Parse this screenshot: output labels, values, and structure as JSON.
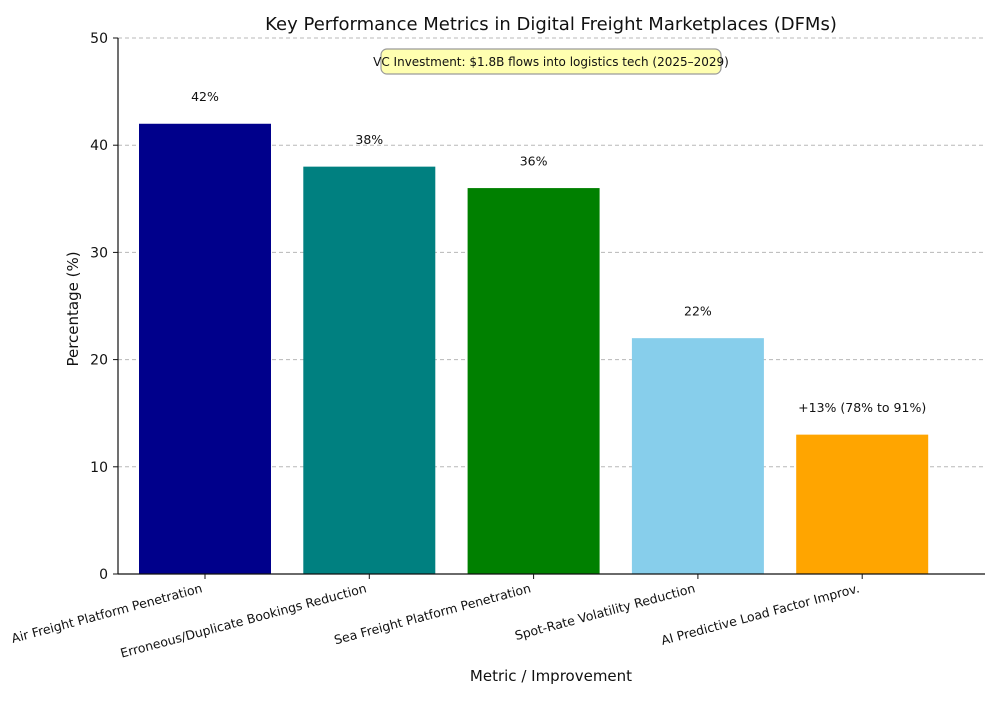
{
  "chart_data": {
    "type": "bar",
    "title": "Key Performance Metrics in Digital Freight Marketplaces (DFMs)",
    "xlabel": "Metric / Improvement",
    "ylabel": "Percentage (%)",
    "ylim": [
      0,
      50
    ],
    "yticks": [
      0,
      10,
      20,
      30,
      40,
      50
    ],
    "grid": "y-dashed",
    "categories": [
      "Air Freight Platform Penetration",
      "Erroneous/Duplicate Bookings Reduction",
      "Sea Freight Platform Penetration",
      "Spot-Rate Volatility Reduction",
      "AI Predictive Load Factor Improv."
    ],
    "values": [
      42,
      38,
      36,
      22,
      13
    ],
    "data_labels": [
      "42%",
      "38%",
      "36%",
      "22%",
      "+13% (78% to 91%)"
    ],
    "colors": [
      "#00008b",
      "#008080",
      "#008000",
      "#87ceeb",
      "#ffa500"
    ],
    "annotation": {
      "text": "VC Investment: $1.8B flows into logistics tech (2025–2029)",
      "background": "#ffffb0",
      "border": "#9a9a9a"
    }
  }
}
